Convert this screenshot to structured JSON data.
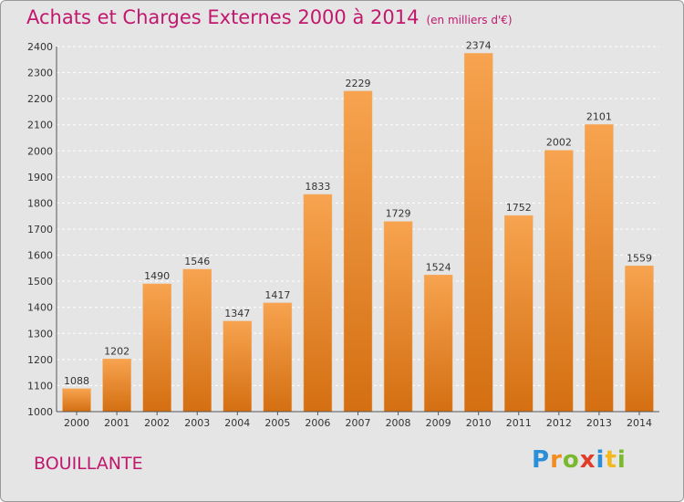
{
  "chart_data": {
    "type": "bar",
    "title": "Achats et Charges Externes 2000 à 2014",
    "subtitle": "(en milliers d'€)",
    "categories": [
      "2000",
      "2001",
      "2002",
      "2003",
      "2004",
      "2005",
      "2006",
      "2007",
      "2008",
      "2009",
      "2010",
      "2011",
      "2012",
      "2013",
      "2014"
    ],
    "values": [
      1088,
      1202,
      1490,
      1546,
      1347,
      1417,
      1833,
      2229,
      1729,
      1524,
      2374,
      1752,
      2002,
      2101,
      1559
    ],
    "ylim": [
      1000,
      2400
    ],
    "yticks": [
      1000,
      1100,
      1200,
      1300,
      1400,
      1500,
      1600,
      1700,
      1800,
      1900,
      2000,
      2100,
      2200,
      2300,
      2400
    ],
    "grid": true,
    "bar_color_light": "#f7a34f",
    "bar_color_dark": "#d46f12"
  },
  "place_label": "BOUILLANTE",
  "logo": {
    "text": "Proxiti",
    "letters": [
      "P",
      "r",
      "o",
      "x",
      "i",
      "t",
      "i"
    ],
    "colors": [
      "#2a8fd6",
      "#f28c1e",
      "#7ab92b",
      "#e23b2a",
      "#2a8fd6",
      "#f2b81e",
      "#7ab92b"
    ]
  }
}
